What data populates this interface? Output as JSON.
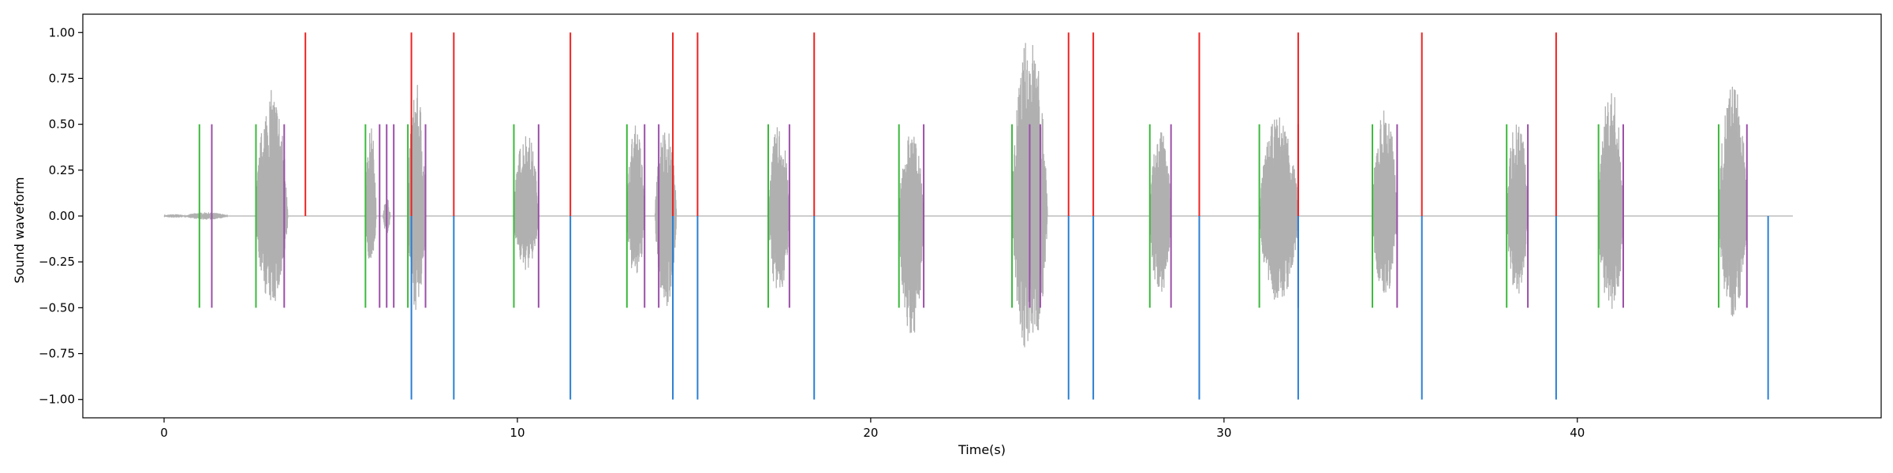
{
  "chart_data": {
    "type": "line",
    "title": "",
    "xlabel": "Time(s)",
    "ylabel": "Sound waveform",
    "xlim": [
      -2.3,
      48.6
    ],
    "ylim": [
      -1.1,
      1.1
    ],
    "xticks": [
      0,
      10,
      20,
      30,
      40
    ],
    "xtick_labels": [
      "0",
      "10",
      "20",
      "30",
      "40"
    ],
    "yticks": [
      1.0,
      0.75,
      0.5,
      0.25,
      0.0,
      -0.25,
      -0.5,
      -0.75,
      -1.0
    ],
    "ytick_labels": [
      "1.00",
      "0.75",
      "0.50",
      "0.25",
      "0.00",
      "−0.25",
      "−0.50",
      "−0.75",
      "−1.00"
    ],
    "grid": false,
    "waveform": {
      "color": "#b0b0b0",
      "x_start": 0.0,
      "x_end": 46.1,
      "bursts": [
        {
          "start": 0.0,
          "end": 0.6,
          "amp_pos": 0.01,
          "amp_neg": 0.01
        },
        {
          "start": 0.6,
          "end": 1.8,
          "amp_pos": 0.02,
          "amp_neg": 0.02
        },
        {
          "start": 1.6,
          "end": 1.8,
          "amp_pos": 0.03,
          "amp_neg": 0.03
        },
        {
          "start": 2.6,
          "end": 3.5,
          "amp_pos": 0.69,
          "amp_neg": 0.49
        },
        {
          "start": 5.7,
          "end": 6.0,
          "amp_pos": 0.5,
          "amp_neg": 0.26
        },
        {
          "start": 6.2,
          "end": 6.4,
          "amp_pos": 0.1,
          "amp_neg": 0.1
        },
        {
          "start": 6.9,
          "end": 7.4,
          "amp_pos": 0.72,
          "amp_neg": 0.52
        },
        {
          "start": 9.9,
          "end": 10.6,
          "amp_pos": 0.47,
          "amp_neg": 0.3
        },
        {
          "start": 13.1,
          "end": 13.6,
          "amp_pos": 0.5,
          "amp_neg": 0.35
        },
        {
          "start": 13.9,
          "end": 14.5,
          "amp_pos": 0.5,
          "amp_neg": 0.5
        },
        {
          "start": 17.1,
          "end": 17.7,
          "amp_pos": 0.5,
          "amp_neg": 0.45
        },
        {
          "start": 20.8,
          "end": 21.5,
          "amp_pos": 0.46,
          "amp_neg": 0.69
        },
        {
          "start": 24.0,
          "end": 25.0,
          "amp_pos": 1.0,
          "amp_neg": 0.78
        },
        {
          "start": 27.9,
          "end": 28.5,
          "amp_pos": 0.47,
          "amp_neg": 0.45
        },
        {
          "start": 31.0,
          "end": 32.1,
          "amp_pos": 0.55,
          "amp_neg": 0.48
        },
        {
          "start": 34.2,
          "end": 34.9,
          "amp_pos": 0.6,
          "amp_neg": 0.45
        },
        {
          "start": 38.0,
          "end": 38.6,
          "amp_pos": 0.55,
          "amp_neg": 0.44
        },
        {
          "start": 40.6,
          "end": 41.3,
          "amp_pos": 0.71,
          "amp_neg": 0.56
        },
        {
          "start": 44.0,
          "end": 44.8,
          "amp_pos": 0.74,
          "amp_neg": 0.55
        }
      ]
    },
    "markers": [
      {
        "color": "#3cb93c",
        "y_range": [
          -0.5,
          0.5
        ],
        "x": [
          1.0,
          2.6,
          5.7,
          6.9,
          9.9,
          13.1,
          17.1,
          20.8,
          24.0,
          27.9,
          31.0,
          34.2,
          38.0,
          40.6,
          44.0
        ]
      },
      {
        "color": "#9b4fa8",
        "y_range": [
          -0.5,
          0.5
        ],
        "x": [
          1.35,
          3.4,
          6.1,
          6.3,
          6.5,
          7.4,
          10.6,
          13.6,
          14.0,
          17.7,
          21.5,
          24.5,
          24.8,
          28.5,
          32.1,
          34.9,
          38.6,
          41.3,
          44.8
        ]
      },
      {
        "color": "#ee2222",
        "y_range": [
          0.0,
          1.0
        ],
        "x": [
          4.0,
          7.0,
          8.2,
          11.5,
          14.4,
          15.1,
          18.4,
          25.6,
          26.3,
          29.3,
          32.1,
          35.6,
          39.4
        ]
      },
      {
        "color": "#2a7fd4",
        "y_range": [
          -1.0,
          0.0
        ],
        "x": [
          7.0,
          8.2,
          11.5,
          14.4,
          15.1,
          18.4,
          25.6,
          26.3,
          29.3,
          32.1,
          35.6,
          39.4,
          45.4
        ]
      }
    ]
  }
}
